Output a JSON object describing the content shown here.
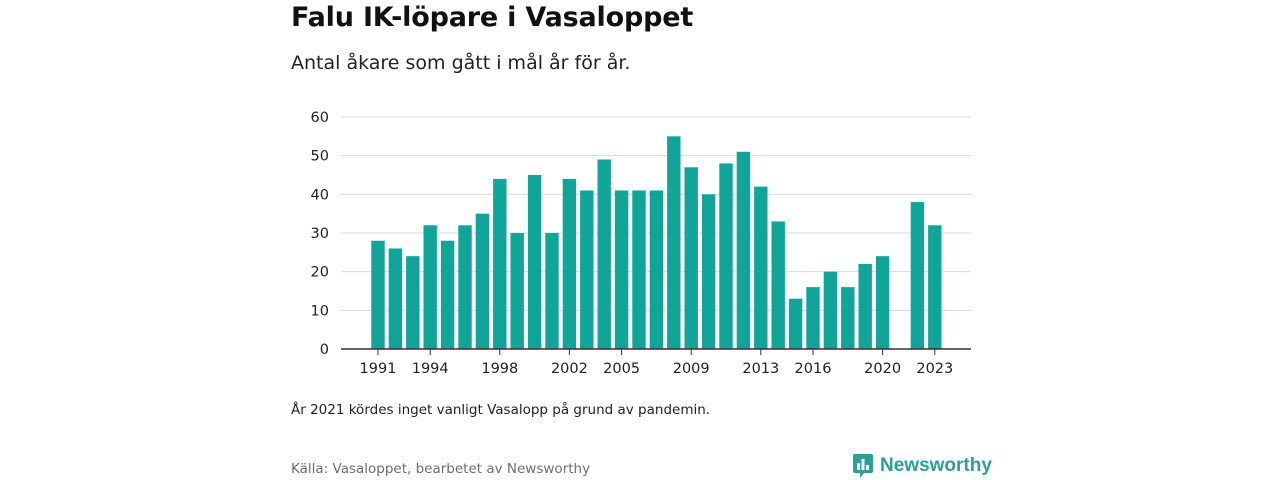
{
  "header": {
    "title": "Falu IK-löpare i Vasaloppet",
    "subtitle": "Antal åkare som gått i mål år för år."
  },
  "footer": {
    "note": "År 2021 kördes inget vanligt Vasalopp på grund av pandemin.",
    "source": "Källa: Vasaloppet, bearbetet av Newsworthy",
    "brand": "Newsworthy",
    "brand_icon": "bar-chart-speech-bubble-icon"
  },
  "colors": {
    "bar": "#11a599",
    "brand": "#2aa196",
    "grid": "#d9d9d9",
    "axis": "#333333"
  },
  "chart_data": {
    "type": "bar",
    "x": [
      1991,
      1992,
      1993,
      1994,
      1995,
      1996,
      1997,
      1998,
      1999,
      2000,
      2001,
      2002,
      2003,
      2004,
      2005,
      2006,
      2007,
      2008,
      2009,
      2010,
      2011,
      2012,
      2013,
      2014,
      2015,
      2016,
      2017,
      2018,
      2019,
      2020,
      2021,
      2022,
      2023
    ],
    "values": [
      28,
      26,
      24,
      32,
      28,
      32,
      35,
      44,
      30,
      45,
      30,
      44,
      41,
      49,
      41,
      41,
      41,
      55,
      47,
      40,
      48,
      51,
      42,
      33,
      13,
      16,
      20,
      16,
      22,
      24,
      null,
      38,
      32
    ],
    "xticks": [
      "1991",
      "1994",
      "1998",
      "2002",
      "2005",
      "2009",
      "2013",
      "2016",
      "2020",
      "2023"
    ],
    "yticks": [
      "0",
      "10",
      "20",
      "30",
      "40",
      "50",
      "60"
    ],
    "ylim": [
      0,
      60
    ],
    "grid": true
  }
}
